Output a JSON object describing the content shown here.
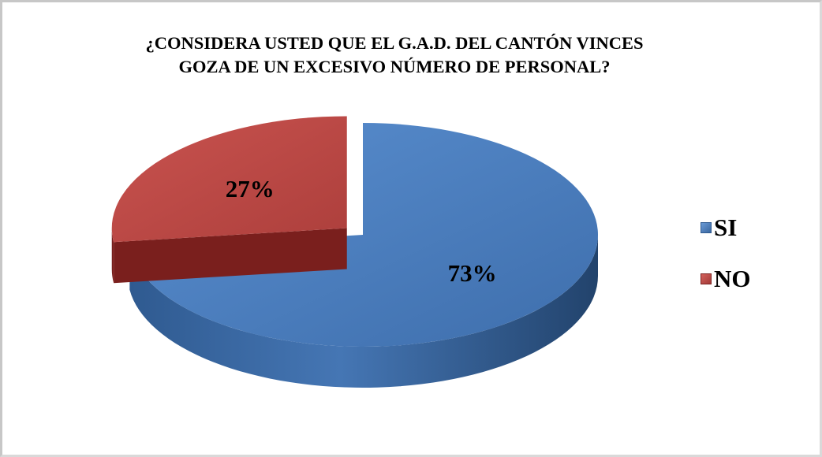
{
  "chart_data": {
    "type": "pie",
    "title": "¿CONSIDERA USTED QUE EL G.A.D. DEL CANTÓN VINCES\nGOZA DE UN EXCESIVO NÚMERO DE PERSONAL?",
    "categories": [
      "SI",
      "NO"
    ],
    "values": [
      73,
      27
    ],
    "labels": [
      "73%",
      "27%"
    ],
    "colors": [
      "#4a7ebb",
      "#be4b48"
    ],
    "legend_position": "right",
    "exploded": "NO",
    "style": "3d"
  }
}
